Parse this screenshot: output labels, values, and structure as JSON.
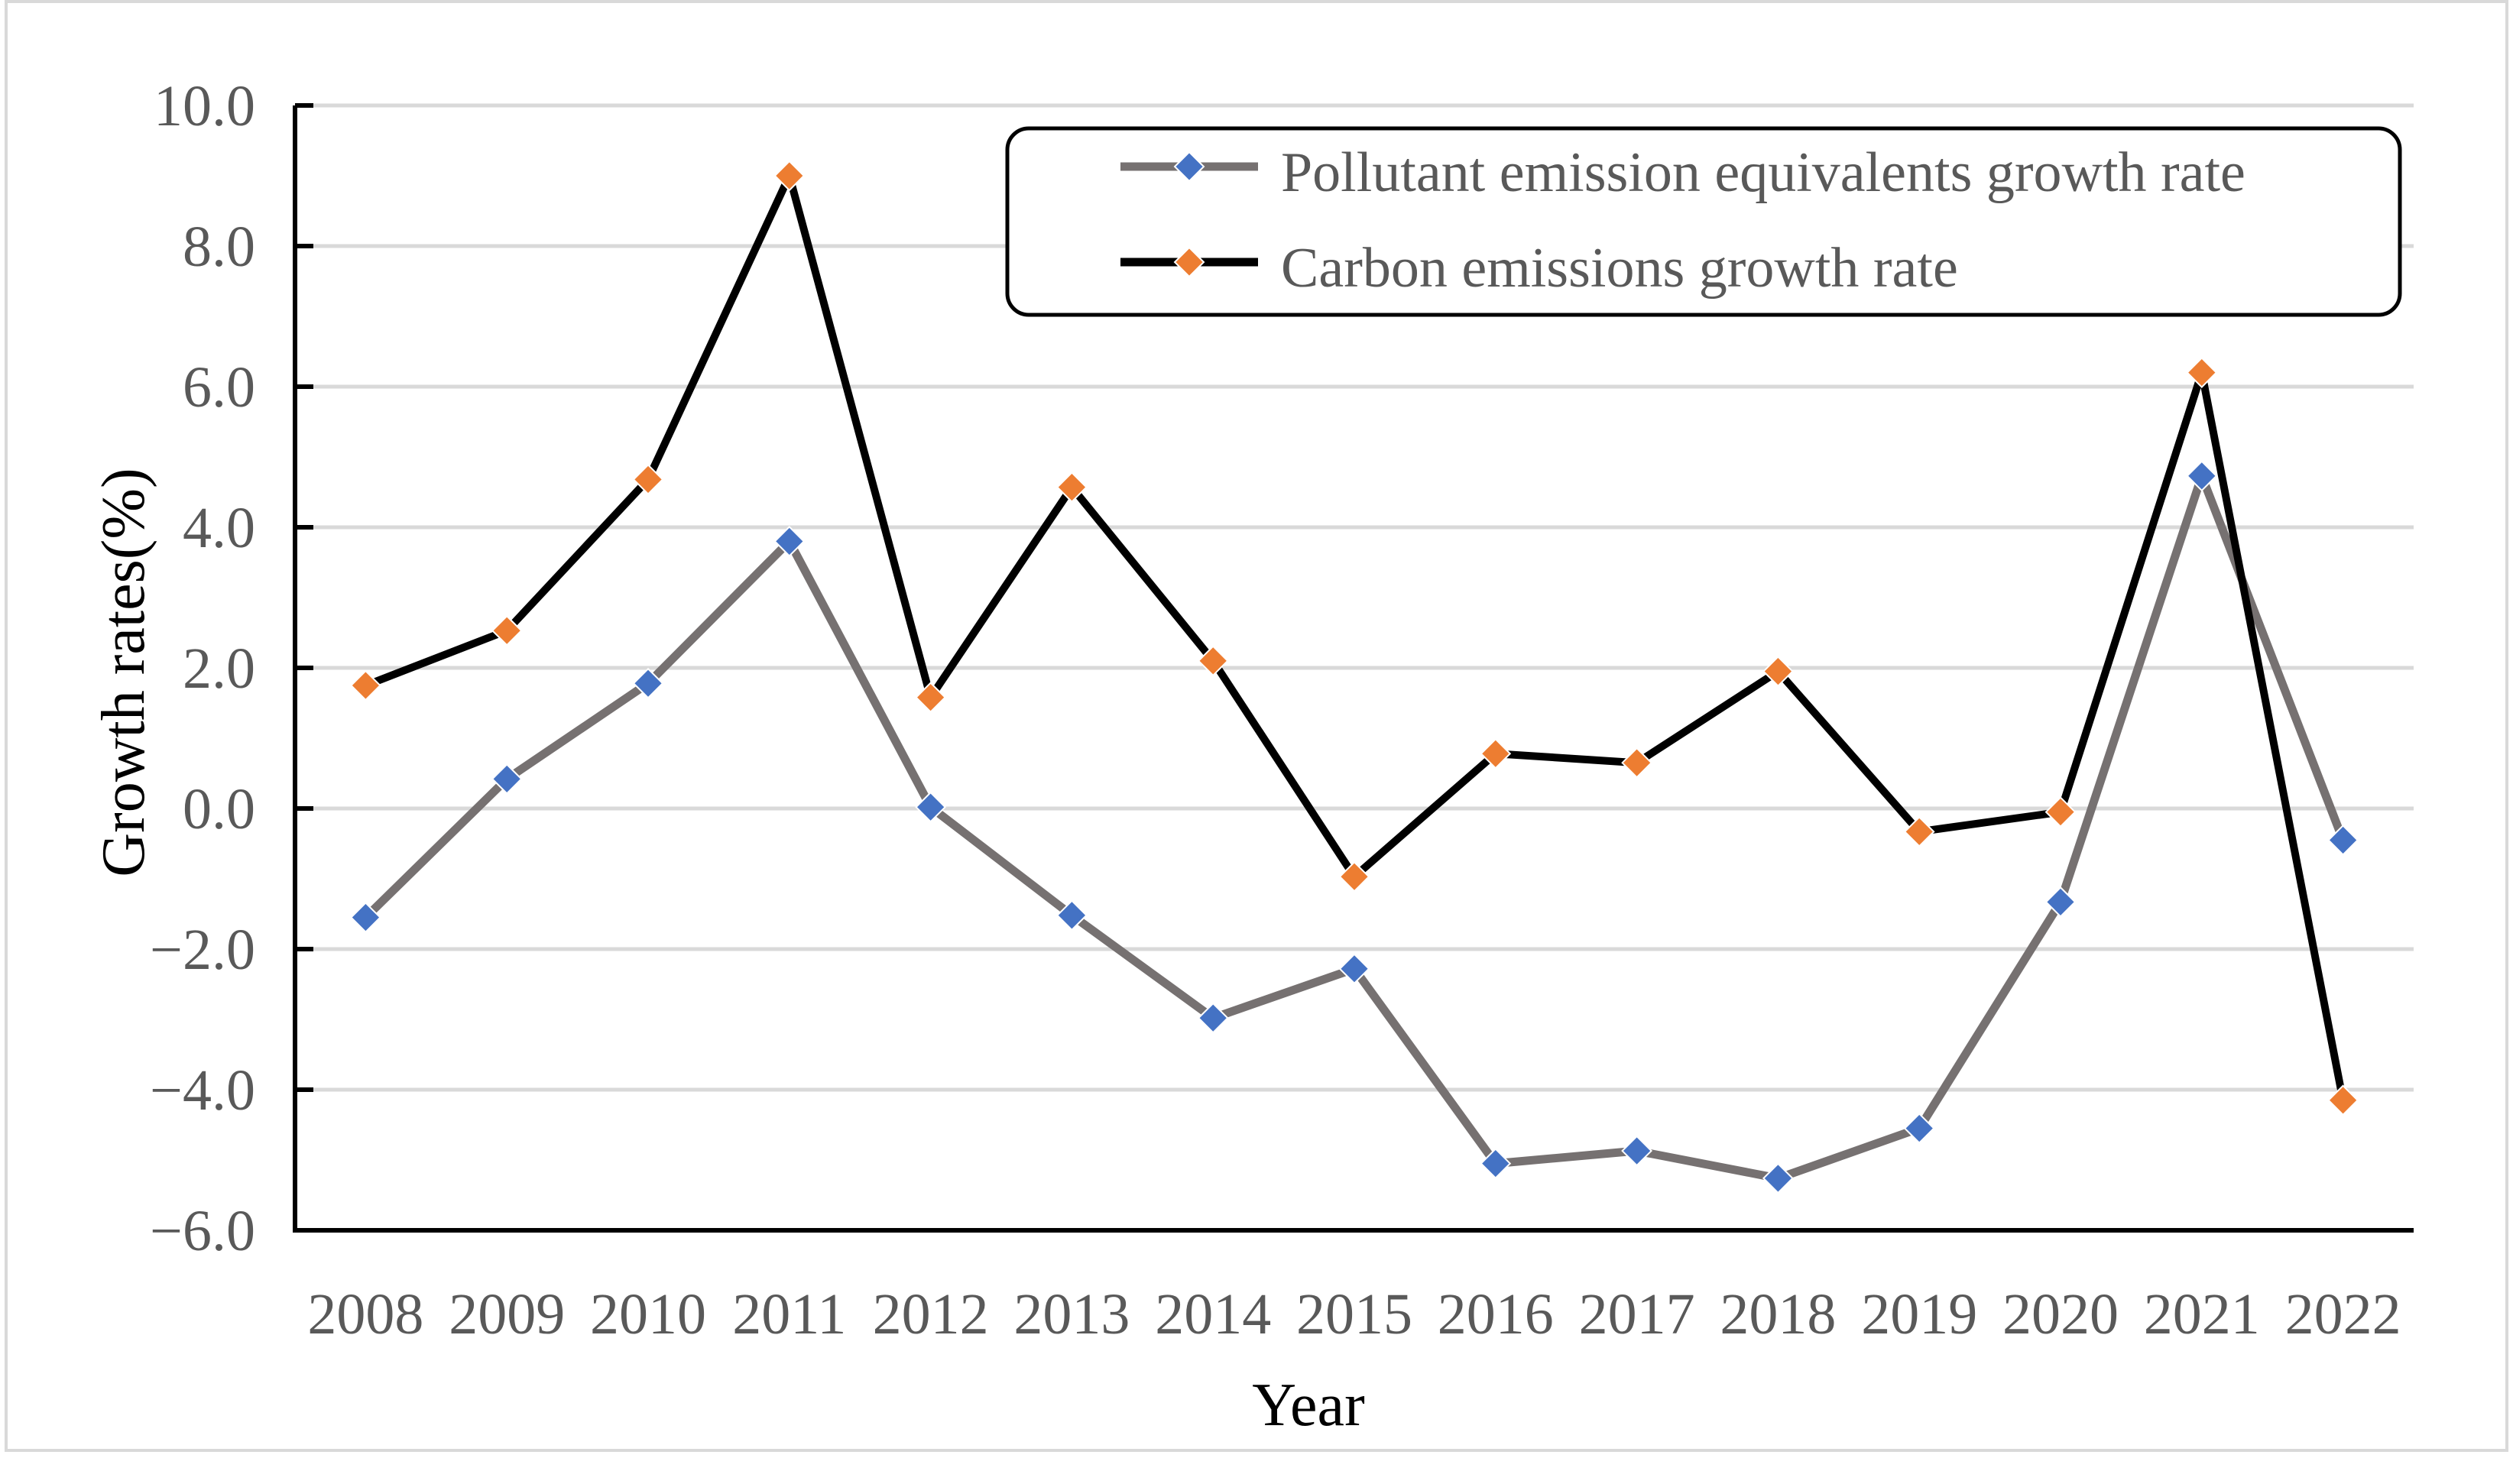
{
  "chart_data": {
    "type": "line",
    "title": "",
    "xlabel": "Year",
    "ylabel": "Growth rates(%)",
    "ylim": [
      -6.0,
      10.0
    ],
    "yticks": [
      "10.0",
      "8.0",
      "6.0",
      "4.0",
      "2.0",
      "0.0",
      "−2.0",
      "−4.0",
      "−6.0"
    ],
    "ytick_values": [
      10,
      8,
      6,
      4,
      2,
      0,
      -2,
      -4,
      -6
    ],
    "categories": [
      "2008",
      "2009",
      "2010",
      "2011",
      "2012",
      "2013",
      "2014",
      "2015",
      "2016",
      "2017",
      "2018",
      "2019",
      "2020",
      "2021",
      "2022"
    ],
    "grid": true,
    "legend_position": "top-right",
    "series": [
      {
        "name": "Pollutant emission equivalents growth rate",
        "line_color": "#767171",
        "marker_color": "#4472C4",
        "values": [
          -1.55,
          0.42,
          1.78,
          3.8,
          0.02,
          -1.52,
          -2.98,
          -2.28,
          -5.05,
          -4.87,
          -5.26,
          -4.55,
          -1.33,
          4.73,
          -0.45
        ]
      },
      {
        "name": "Carbon emissions growth rate",
        "line_color": "#000000",
        "marker_color": "#ED7D31",
        "values": [
          1.75,
          2.53,
          4.68,
          9.0,
          1.58,
          4.57,
          2.1,
          -0.97,
          0.78,
          0.65,
          1.95,
          -0.33,
          -0.05,
          6.2,
          -4.15
        ]
      }
    ]
  }
}
